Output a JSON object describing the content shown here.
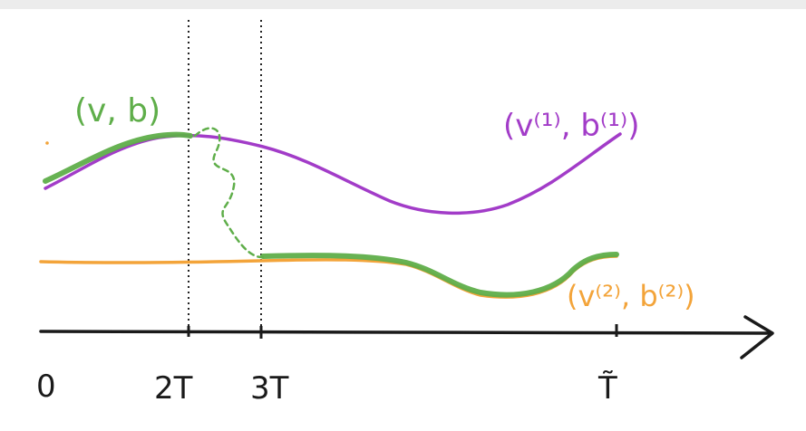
{
  "labels": {
    "zero": "0",
    "two_t": "2T",
    "three_t": "3T",
    "t_tilde": "T̃",
    "vb": "(v, b)",
    "v1b1": "(v⁽¹⁾, b⁽¹⁾)",
    "v2b2": "(v⁽²⁾, b⁽²⁾)"
  },
  "colors": {
    "purple": "#a23cc8",
    "orange": "#f3a43a",
    "green": "#5fae4a",
    "ink": "#1a1a1a"
  }
}
